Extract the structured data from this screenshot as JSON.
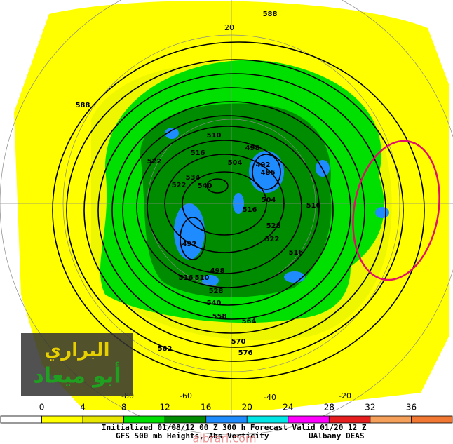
{
  "map": {
    "contour_labels": [
      588,
      588,
      522,
      510,
      516,
      498,
      492,
      486,
      504,
      534,
      522,
      540,
      504,
      516,
      516,
      528,
      522,
      516,
      492,
      498,
      516,
      510,
      528,
      540,
      558,
      564,
      570,
      576,
      582
    ],
    "longitude_labels": [
      20,
      -80,
      -60,
      -40,
      -20
    ]
  },
  "colorbar": {
    "ticks": [
      0,
      4,
      8,
      12,
      16,
      20,
      24,
      28,
      32,
      36
    ],
    "colors": [
      "#ffffff",
      "#ffff00",
      "#e6e600",
      "#00e000",
      "#008c00",
      "#1e8cff",
      "#00e6e6",
      "#ff00ff",
      "#e61e1e",
      "#f5a05a",
      "#f07832"
    ]
  },
  "caption": {
    "line1": "Initialized 01/08/12 00 Z  300 h Forecast Valid 01/20 12 Z",
    "line2": "GFS 500 mb Heights, Abs Vorticity",
    "credit": "UAlbany DEAS"
  },
  "watermark": {
    "line1": "البراري",
    "line2": "أبو ميعاد",
    "site": "albrari.com"
  }
}
